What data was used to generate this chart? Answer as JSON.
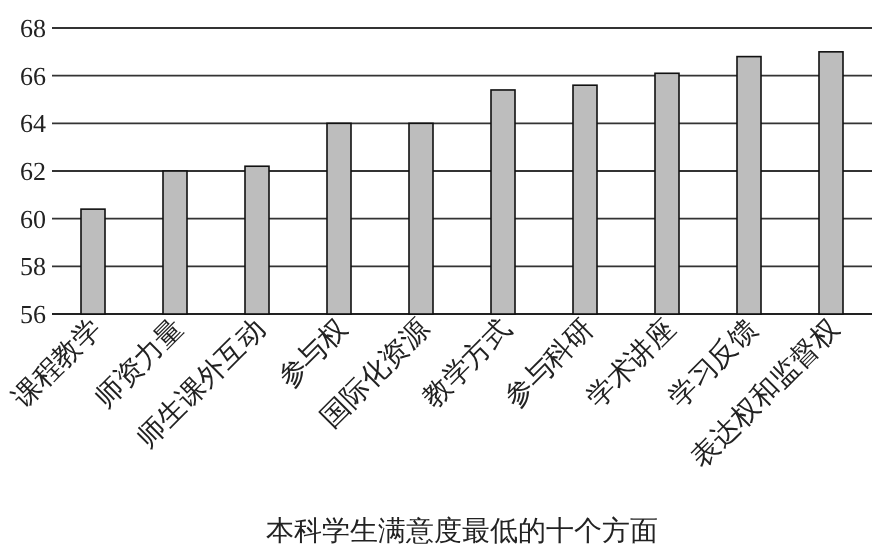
{
  "chart_data": {
    "type": "bar",
    "xlabel": "本科学生满意度最低的十个方面",
    "categories": [
      "课程教学",
      "师资力量",
      "师生课外互动",
      "参与权",
      "国际化资源",
      "教学方式",
      "参与科研",
      "学术讲座",
      "学习反馈",
      "表达权和监督权"
    ],
    "values": [
      60.4,
      62.0,
      62.2,
      64.0,
      64.0,
      65.4,
      65.6,
      66.1,
      66.8,
      67.0
    ],
    "color": "#bdbdbd",
    "ylim": [
      56,
      68
    ],
    "yticks": [
      56,
      58,
      60,
      62,
      64,
      66,
      68
    ],
    "grid": "y"
  }
}
